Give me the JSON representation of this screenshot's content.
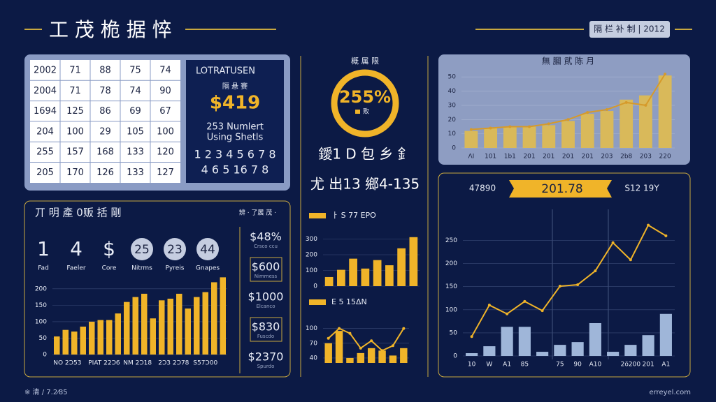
{
  "header": {
    "title": "工 茂 桅 据 悴",
    "badge": "隔 栏 补 制 | 2012"
  },
  "table": {
    "rows": [
      [
        2002,
        71,
        88,
        75,
        74
      ],
      [
        2004,
        71,
        78,
        74,
        90
      ],
      [
        1694,
        125,
        86,
        69,
        67
      ],
      [
        204,
        100,
        29,
        105,
        100
      ],
      [
        255,
        157,
        168,
        133,
        120
      ],
      [
        205,
        170,
        126,
        133,
        127
      ]
    ]
  },
  "summary": {
    "title": "LOTRATUSEN",
    "label": "隔 悬 赛",
    "value": "$419",
    "lines": [
      "253 Numlert",
      "Using Shetls"
    ],
    "digits": [
      "1 2 3 4 5 6 7 8",
      "4 6 5 16 7 8"
    ]
  },
  "gauge": {
    "label": "概 属 限",
    "value": "255%",
    "legend": "败",
    "caption": "鑀1 D 包 乡 釒",
    "sub": "尤 出13 鄉4-135"
  },
  "kpi_panel": {
    "title": "丌 明 產 0贩 括 剛",
    "note": "辨 · 了展 茂 ·",
    "items": [
      {
        "value": "1",
        "label": "Fad"
      },
      {
        "value": "4",
        "label": "Faeler"
      },
      {
        "value": "$",
        "label": "Core"
      },
      {
        "value": "25",
        "label": "Nitrms"
      },
      {
        "value": "23",
        "label": "Pyreis"
      },
      {
        "value": "44",
        "label": "Gnapes"
      }
    ],
    "side": [
      {
        "value": "$48%",
        "label": "Crsco ccu"
      },
      {
        "value": "$600",
        "label": "Nimmess"
      },
      {
        "value": "$1000",
        "label": "Elcanco"
      },
      {
        "value": "$830",
        "label": "Fuscdo"
      },
      {
        "value": "$2370",
        "label": "Spurdo"
      }
    ]
  },
  "right_header": {
    "left": "47890",
    "badge": "201.78",
    "right": "S12 19Y"
  },
  "footer": {
    "left": "※ 清 / 7.2⁄85",
    "right": "erreyel.com"
  },
  "chart_data": [
    {
      "type": "bar-line",
      "title": "無 膕 貮 陈 月",
      "categories": [
        "ΛI",
        "101",
        "1b1",
        "201",
        "201",
        "201",
        "201",
        "203",
        "2b8",
        "203",
        "220"
      ],
      "values": [
        12,
        14,
        15,
        15,
        16,
        19,
        24,
        26,
        34,
        37,
        51
      ],
      "line_values": [
        13,
        14,
        15,
        15,
        17,
        20,
        25,
        27,
        32,
        30,
        52
      ],
      "color": "#d9b95a",
      "line_color": "#d69a2a",
      "ylim": [
        0,
        55
      ],
      "yticks": [
        0,
        10,
        20,
        30,
        40,
        50
      ]
    },
    {
      "type": "bar",
      "categories": [
        "NO 2Ɔ53",
        null,
        null,
        null,
        "PIAT 22Ɔ6",
        null,
        null,
        null,
        "NM 2Ɔ18",
        null,
        null,
        null,
        "2Ɔ3 2Ɔ78",
        null,
        null,
        null,
        "S57Ɔ00",
        null,
        null,
        null
      ],
      "values": [
        55,
        75,
        70,
        85,
        100,
        105,
        105,
        125,
        160,
        175,
        185,
        110,
        165,
        170,
        185,
        140,
        175,
        190,
        220,
        235
      ],
      "color": "#f0b429",
      "ylim": [
        0,
        240
      ],
      "yticks": [
        0,
        50,
        100,
        150,
        200
      ]
    },
    {
      "type": "bar",
      "legend": "ㅏ S 77 EPO",
      "values": [
        58,
        104,
        175,
        112,
        166,
        133,
        241,
        312
      ],
      "color": "#f0b429",
      "ylim": [
        0,
        320
      ],
      "yticks": [
        0,
        100,
        200,
        300
      ]
    },
    {
      "type": "bar-line",
      "legend": "E 5 15ΔN",
      "values": [
        70,
        95,
        40,
        50,
        60,
        55,
        45,
        60
      ],
      "line_values": [
        80,
        100,
        90,
        60,
        75,
        55,
        65,
        100
      ],
      "color": "#f0b429",
      "line_color": "#f0b429",
      "ylim": [
        30,
        115
      ],
      "yticks": [
        40,
        70,
        100
      ]
    },
    {
      "type": "bar-line",
      "categories": [
        "10",
        "W",
        "A1",
        "85",
        null,
        "75",
        "90",
        "A10",
        null,
        "2ö200",
        "201",
        "A1"
      ],
      "values": [
        6,
        21,
        63,
        63,
        9,
        24,
        30,
        71,
        9,
        24,
        45,
        91
      ],
      "line_values": [
        42,
        110,
        91,
        118,
        98,
        151,
        154,
        184,
        245,
        208,
        283,
        260
      ],
      "color": "#9fb6d9",
      "line_color": "#f0b429",
      "ylim": [
        0,
        290
      ],
      "yticks": [
        0,
        50,
        100,
        150,
        200,
        250
      ]
    }
  ]
}
